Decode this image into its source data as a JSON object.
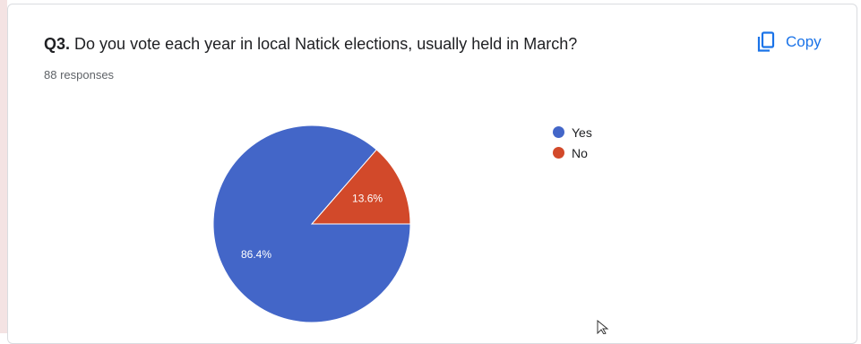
{
  "question": {
    "number": "Q3.",
    "text": "Do you vote each year in local Natick elections, usually held in March?",
    "responses": "88 responses"
  },
  "toolbar": {
    "copy_label": "Copy",
    "copy_icon": "copy-icon"
  },
  "chart_data": {
    "type": "pie",
    "categories": [
      "Yes",
      "No"
    ],
    "values": [
      86.4,
      13.6
    ],
    "labels": [
      "86.4%",
      "13.6%"
    ],
    "colors": [
      "#4366c8",
      "#d2492a"
    ],
    "legend_position": "right"
  }
}
